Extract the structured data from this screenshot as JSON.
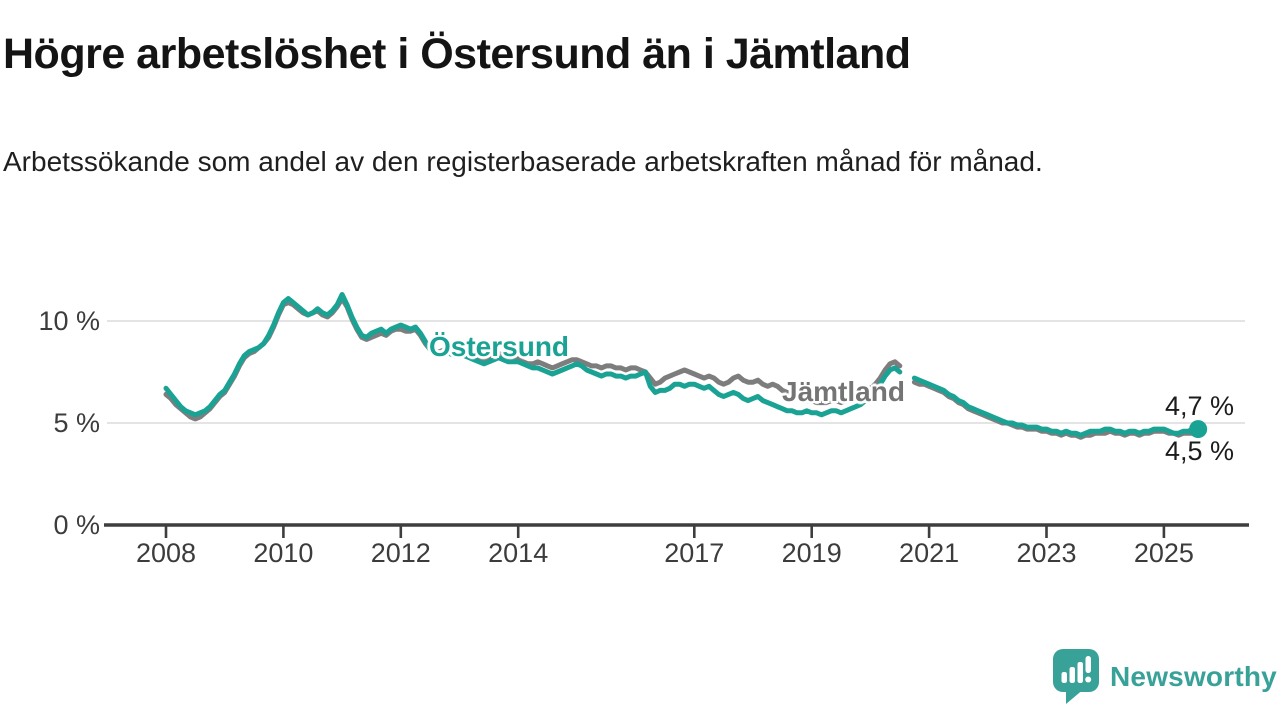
{
  "header": {
    "title": "Högre arbetslöshet i Östersund än i Jämtland",
    "subtitle": "Arbetssökande som andel av den registerbaserade arbetskraften månad för månad."
  },
  "chart_data": {
    "type": "line",
    "title": "Högre arbetslöshet i Östersund än i Jämtland",
    "subtitle": "Arbetssökande som andel av den registerbaserade arbetskraften månad för månad.",
    "x_unit": "month",
    "x_start_year": 2008,
    "x_ticks": [
      2008,
      2010,
      2012,
      2014,
      2017,
      2019,
      2021,
      2023,
      2025
    ],
    "y_ticks": [
      {
        "value": 0,
        "label": "0 %"
      },
      {
        "value": 5,
        "label": "5 %"
      },
      {
        "value": 10,
        "label": "10 %"
      }
    ],
    "ylim": [
      0,
      12.5
    ],
    "grid": "horizontal",
    "colors": {
      "grid": "#dbdbdb",
      "axis": "#3e3e3e",
      "tick_text": "#3c3c3c"
    },
    "series": [
      {
        "name": "Jämtland",
        "color": "#7d7d7d",
        "label_color": "#747474",
        "end_label": "4,5 %",
        "end_marker": false,
        "values": [
          6.4,
          6.2,
          5.9,
          5.7,
          5.5,
          5.3,
          5.2,
          5.3,
          5.5,
          5.7,
          6.0,
          6.3,
          6.5,
          6.9,
          7.3,
          7.8,
          8.2,
          8.4,
          8.5,
          8.7,
          8.9,
          9.2,
          9.7,
          10.3,
          10.8,
          10.9,
          10.8,
          10.6,
          10.4,
          10.3,
          10.4,
          10.5,
          10.3,
          10.2,
          10.4,
          10.7,
          11.1,
          10.7,
          10.1,
          9.6,
          9.2,
          9.1,
          9.2,
          9.3,
          9.4,
          9.3,
          9.5,
          9.6,
          9.6,
          9.5,
          9.5,
          9.6,
          9.3,
          8.9,
          8.6,
          8.5,
          8.5,
          8.6,
          8.5,
          8.4,
          8.5,
          8.4,
          8.4,
          8.3,
          8.2,
          8.1,
          8.2,
          8.3,
          8.4,
          8.3,
          8.2,
          8.2,
          8.2,
          8.0,
          7.9,
          7.9,
          8.0,
          7.9,
          7.8,
          7.7,
          7.8,
          7.9,
          8.0,
          8.1,
          8.1,
          8.0,
          7.9,
          7.8,
          7.8,
          7.7,
          7.8,
          7.8,
          7.7,
          7.7,
          7.6,
          7.7,
          7.7,
          7.6,
          7.5,
          7.2,
          6.9,
          7.0,
          7.2,
          7.3,
          7.4,
          7.5,
          7.6,
          7.5,
          7.4,
          7.3,
          7.2,
          7.3,
          7.2,
          7.0,
          6.9,
          7.0,
          7.2,
          7.3,
          7.1,
          7.0,
          7.0,
          7.1,
          6.9,
          6.8,
          6.9,
          6.8,
          6.6,
          6.5,
          6.4,
          6.3,
          6.2,
          6.1,
          6.1,
          6.0,
          6.0,
          6.0,
          6.1,
          6.1,
          6.0,
          6.1,
          6.2,
          6.2,
          6.3,
          6.5,
          6.7,
          6.9,
          7.2,
          7.6,
          7.9,
          8.0,
          7.8,
          null,
          null,
          7.0,
          6.9,
          6.9,
          6.8,
          6.7,
          6.6,
          6.5,
          6.3,
          6.2,
          6.0,
          5.9,
          5.7,
          5.6,
          5.5,
          5.4,
          5.3,
          5.2,
          5.1,
          5.0,
          5.0,
          4.9,
          4.8,
          4.8,
          4.7,
          4.7,
          4.7,
          4.6,
          4.6,
          4.5,
          4.5,
          4.4,
          4.5,
          4.4,
          4.4,
          4.3,
          4.4,
          4.4,
          4.5,
          4.5,
          4.5,
          4.6,
          4.5,
          4.5,
          4.4,
          4.5,
          4.5,
          4.4,
          4.5,
          4.5,
          4.6,
          4.6,
          4.6,
          4.5,
          4.5,
          4.4,
          4.5,
          4.5,
          4.5,
          4.5
        ]
      },
      {
        "name": "Östersund",
        "color": "#1aa394",
        "label_color": "#1aa394",
        "end_label": "4,7 %",
        "end_marker": true,
        "values": [
          6.7,
          6.4,
          6.1,
          5.8,
          5.6,
          5.5,
          5.4,
          5.5,
          5.6,
          5.8,
          6.1,
          6.4,
          6.6,
          7.0,
          7.4,
          7.9,
          8.3,
          8.5,
          8.6,
          8.7,
          8.9,
          9.3,
          9.8,
          10.4,
          10.9,
          11.1,
          10.9,
          10.7,
          10.5,
          10.3,
          10.4,
          10.6,
          10.4,
          10.3,
          10.5,
          10.8,
          11.3,
          10.8,
          10.2,
          9.7,
          9.3,
          9.2,
          9.4,
          9.5,
          9.6,
          9.4,
          9.6,
          9.7,
          9.8,
          9.7,
          9.6,
          9.7,
          9.4,
          9.0,
          8.6,
          8.5,
          8.4,
          8.5,
          8.4,
          8.3,
          8.4,
          8.3,
          8.2,
          8.1,
          8.0,
          7.9,
          8.0,
          8.1,
          8.2,
          8.1,
          8.0,
          8.0,
          8.0,
          7.9,
          7.8,
          7.7,
          7.7,
          7.6,
          7.5,
          7.4,
          7.5,
          7.6,
          7.7,
          7.8,
          7.9,
          7.8,
          7.6,
          7.5,
          7.4,
          7.3,
          7.4,
          7.4,
          7.3,
          7.3,
          7.2,
          7.3,
          7.3,
          7.4,
          7.5,
          6.8,
          6.5,
          6.6,
          6.6,
          6.7,
          6.9,
          6.9,
          6.8,
          6.9,
          6.9,
          6.8,
          6.7,
          6.8,
          6.6,
          6.4,
          6.3,
          6.4,
          6.5,
          6.4,
          6.2,
          6.1,
          6.2,
          6.3,
          6.1,
          6.0,
          5.9,
          5.8,
          5.7,
          5.6,
          5.6,
          5.5,
          5.5,
          5.6,
          5.5,
          5.5,
          5.4,
          5.5,
          5.6,
          5.6,
          5.5,
          5.6,
          5.7,
          5.8,
          5.9,
          6.1,
          6.3,
          6.5,
          6.9,
          7.3,
          7.6,
          7.7,
          7.5,
          null,
          null,
          7.2,
          7.1,
          7.0,
          6.9,
          6.8,
          6.7,
          6.6,
          6.4,
          6.3,
          6.1,
          6.0,
          5.8,
          5.7,
          5.6,
          5.5,
          5.4,
          5.3,
          5.2,
          5.1,
          5.0,
          5.0,
          4.9,
          4.9,
          4.8,
          4.8,
          4.8,
          4.7,
          4.7,
          4.6,
          4.6,
          4.5,
          4.6,
          4.5,
          4.5,
          4.4,
          4.5,
          4.6,
          4.6,
          4.6,
          4.7,
          4.7,
          4.6,
          4.6,
          4.5,
          4.6,
          4.6,
          4.5,
          4.6,
          4.6,
          4.7,
          4.7,
          4.7,
          4.6,
          4.5,
          4.5,
          4.6,
          4.6,
          4.7,
          4.7
        ]
      }
    ]
  },
  "footer": {
    "brand": "Newsworthy",
    "brand_color": "#38a198"
  }
}
